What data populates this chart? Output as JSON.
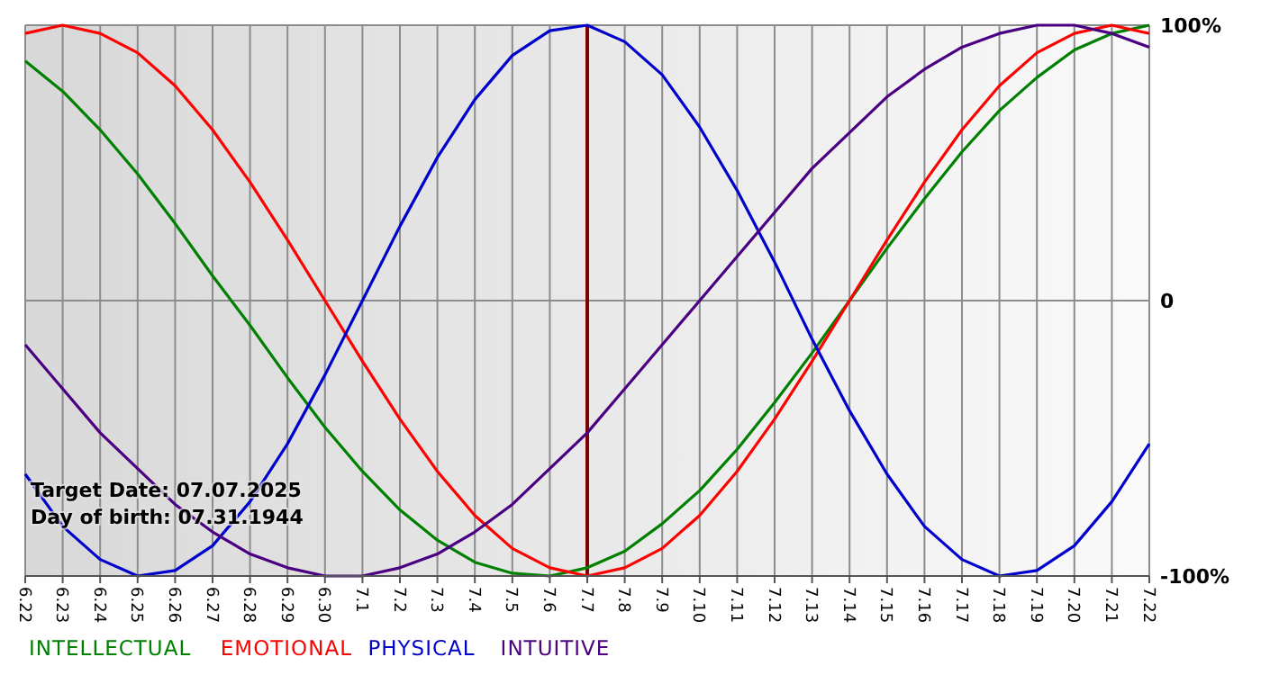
{
  "chart_data": {
    "type": "line",
    "categories": [
      "6.22",
      "6.23",
      "6.24",
      "6.25",
      "6.26",
      "6.27",
      "6.28",
      "6.29",
      "6.30",
      "7.1",
      "7.2",
      "7.3",
      "7.4",
      "7.5",
      "7.6",
      "7.7",
      "7.8",
      "7.9",
      "7.10",
      "7.11",
      "7.12",
      "7.13",
      "7.14",
      "7.15",
      "7.16",
      "7.17",
      "7.18",
      "7.19",
      "7.20",
      "7.21",
      "7.22"
    ],
    "series": [
      {
        "name": "INTELLECTUAL",
        "color": "#008000",
        "values": [
          87,
          76,
          62,
          46,
          28,
          9,
          -9,
          -28,
          -46,
          -62,
          -76,
          -87,
          -95,
          -99,
          -100,
          -97,
          -91,
          -81,
          -69,
          -54,
          -37,
          -19,
          0,
          19,
          37,
          54,
          69,
          81,
          91,
          97,
          100
        ]
      },
      {
        "name": "EMOTIONAL",
        "color": "#ff0000",
        "values": [
          97,
          100,
          97,
          90,
          78,
          62,
          43,
          22,
          0,
          -22,
          -43,
          -62,
          -78,
          -90,
          -97,
          -100,
          -97,
          -90,
          -78,
          -62,
          -43,
          -22,
          0,
          22,
          43,
          62,
          78,
          90,
          97,
          100,
          97
        ]
      },
      {
        "name": "PHYSICAL",
        "color": "#0000cc",
        "values": [
          -63,
          -82,
          -94,
          -100,
          -98,
          -89,
          -73,
          -52,
          -27,
          0,
          27,
          52,
          73,
          89,
          98,
          100,
          94,
          82,
          63,
          40,
          14,
          -14,
          -40,
          -63,
          -82,
          -94,
          -100,
          -98,
          -89,
          -73,
          -52
        ]
      },
      {
        "name": "INTUITIVE",
        "color": "#4b0082",
        "values": [
          -16,
          -32,
          -48,
          -61,
          -74,
          -84,
          -92,
          -97,
          -100,
          -100,
          -97,
          -92,
          -84,
          -74,
          -61,
          -48,
          -32,
          -16,
          0,
          16,
          32,
          48,
          61,
          74,
          84,
          92,
          97,
          100,
          100,
          97,
          92
        ]
      }
    ],
    "ylim": [
      -100,
      100
    ],
    "yticks": [
      {
        "value": 100,
        "label": "100%"
      },
      0,
      {
        "value": -100,
        "label": "-100%"
      }
    ],
    "grid": true,
    "ref_lines": [
      {
        "axis": "x",
        "value": "7.7",
        "color": "#800000"
      }
    ],
    "annotations": [
      "Target Date: 07.07.2025",
      "Day of birth: 07.31.1944"
    ],
    "legend": "bottom",
    "marker": "none",
    "line_style": "solid"
  }
}
